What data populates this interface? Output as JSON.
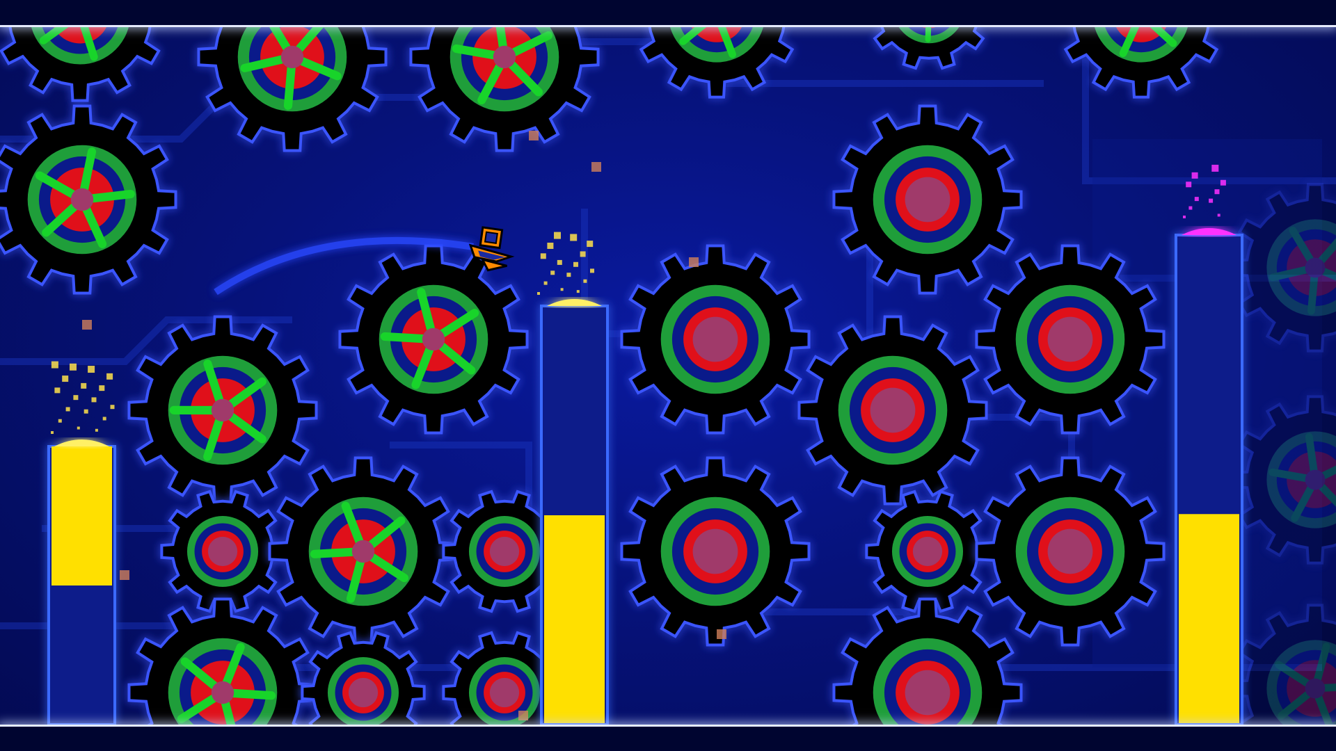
{
  "level": {
    "theme": "clockwork",
    "mode": "ship",
    "colors": {
      "background": "#06127a",
      "line": "#e6ecff",
      "gear_outer": "#000000",
      "gear_glow": "#3a55ff",
      "gear_ring": "#1f9e3a",
      "gear_spokes": "#18d42a",
      "gear_core": "#e0101a",
      "gear_hub": "#a03a6a",
      "pillar_blue": "#0a1a8a",
      "pillar_yellow": "#ffe000",
      "player_primary": "#ff8a00",
      "player_secondary": "#1a2aa0"
    }
  },
  "player": {
    "icon": "ship-icon",
    "trail_color": "#2a4aff"
  },
  "pillars": [
    {
      "name": "pillar-left",
      "yellow_fraction": 0.5,
      "yellow_on": "top",
      "pad": "yellow-jump-pad"
    },
    {
      "name": "pillar-center",
      "yellow_fraction": 0.5,
      "yellow_on": "bottom",
      "pad": "yellow-jump-pad"
    },
    {
      "name": "pillar-right",
      "yellow_fraction": 0.43,
      "yellow_on": "bottom",
      "pad": "pink-jump-pad"
    }
  ],
  "gears": [
    {
      "style": "spoked"
    },
    {
      "style": "solid"
    }
  ]
}
